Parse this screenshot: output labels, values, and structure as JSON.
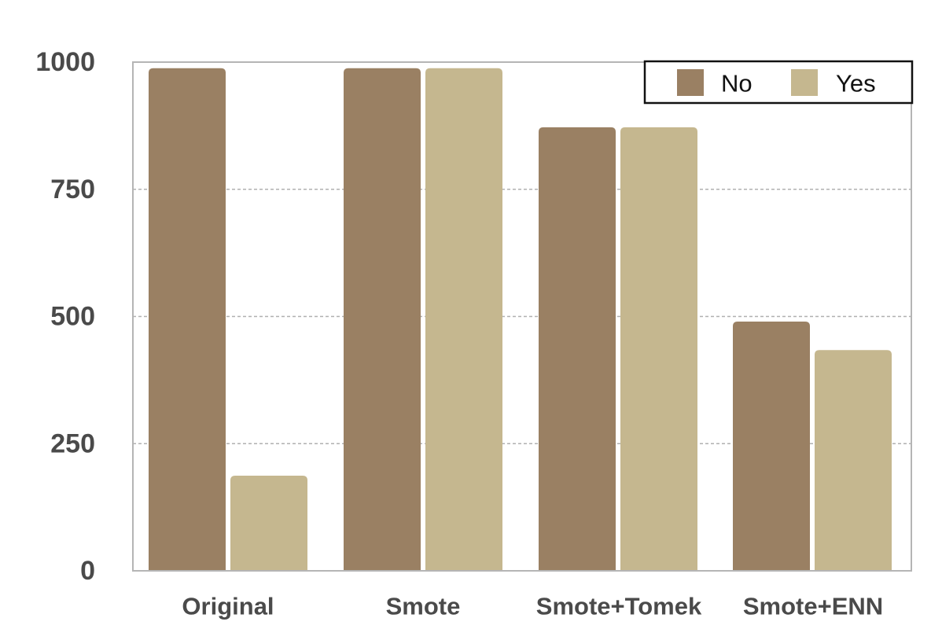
{
  "chart_data": {
    "type": "bar",
    "title": "",
    "xlabel": "",
    "ylabel": "",
    "categories": [
      "Original",
      "Smote",
      "Smote+Tomek",
      "Smote+ENN"
    ],
    "series": [
      {
        "name": "No",
        "values": [
          988,
          988,
          872,
          490
        ],
        "color": "#9a8063"
      },
      {
        "name": "Yes",
        "values": [
          187,
          988,
          872,
          434
        ],
        "color": "#c5b78f"
      }
    ],
    "ylim": [
      0,
      1000
    ],
    "yticks": [
      "0",
      "250",
      "500",
      "750",
      "1000"
    ],
    "grid": true,
    "legend_position": "top-right"
  }
}
